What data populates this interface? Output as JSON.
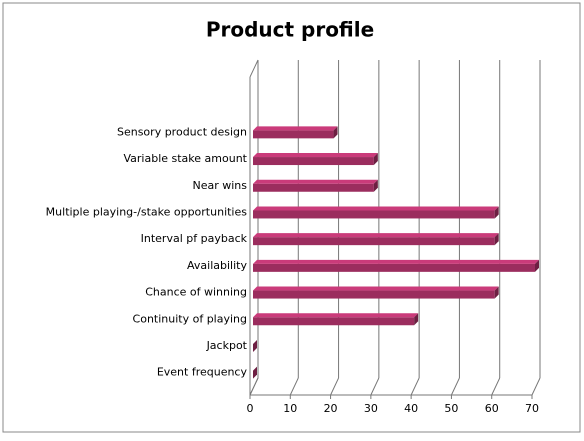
{
  "chart_data": {
    "type": "bar",
    "orientation": "horizontal",
    "title": "Product profile",
    "categories": [
      "Sensory product design",
      "Variable stake amount",
      "Near wins",
      "Multiple playing-/stake opportunities",
      "Interval pf payback",
      "Availability",
      "Chance of winning",
      "Continuity of playing",
      "Jackpot",
      "Event frequency"
    ],
    "values": [
      20,
      30,
      30,
      60,
      60,
      70,
      60,
      40,
      0,
      0
    ],
    "color": "#9b2d5e",
    "xlim": [
      0,
      70
    ],
    "xticks": [
      0,
      10,
      20,
      30,
      40,
      50,
      60,
      70
    ],
    "grid": true
  }
}
